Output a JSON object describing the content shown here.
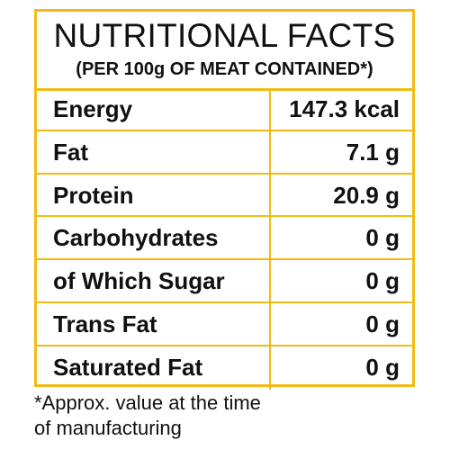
{
  "header": {
    "title": "NUTRITIONAL FACTS",
    "subtitle": "(PER 100g OF MEAT CONTAINED*)"
  },
  "rows": [
    {
      "name": "Energy",
      "value": "147.3 kcal"
    },
    {
      "name": "Fat",
      "value": "7.1 g"
    },
    {
      "name": "Protein",
      "value": "20.9 g"
    },
    {
      "name": "Carbohydrates",
      "value": "0 g"
    },
    {
      "name": "of Which Sugar",
      "value": "0 g"
    },
    {
      "name": "Trans Fat",
      "value": "0 g"
    },
    {
      "name": "Saturated Fat",
      "value": "0 g"
    }
  ],
  "footnote": {
    "line1": "*Approx. value at the time",
    "line2": "of manufacturing"
  },
  "colors": {
    "border": "#f2bb14",
    "text": "#111111"
  }
}
